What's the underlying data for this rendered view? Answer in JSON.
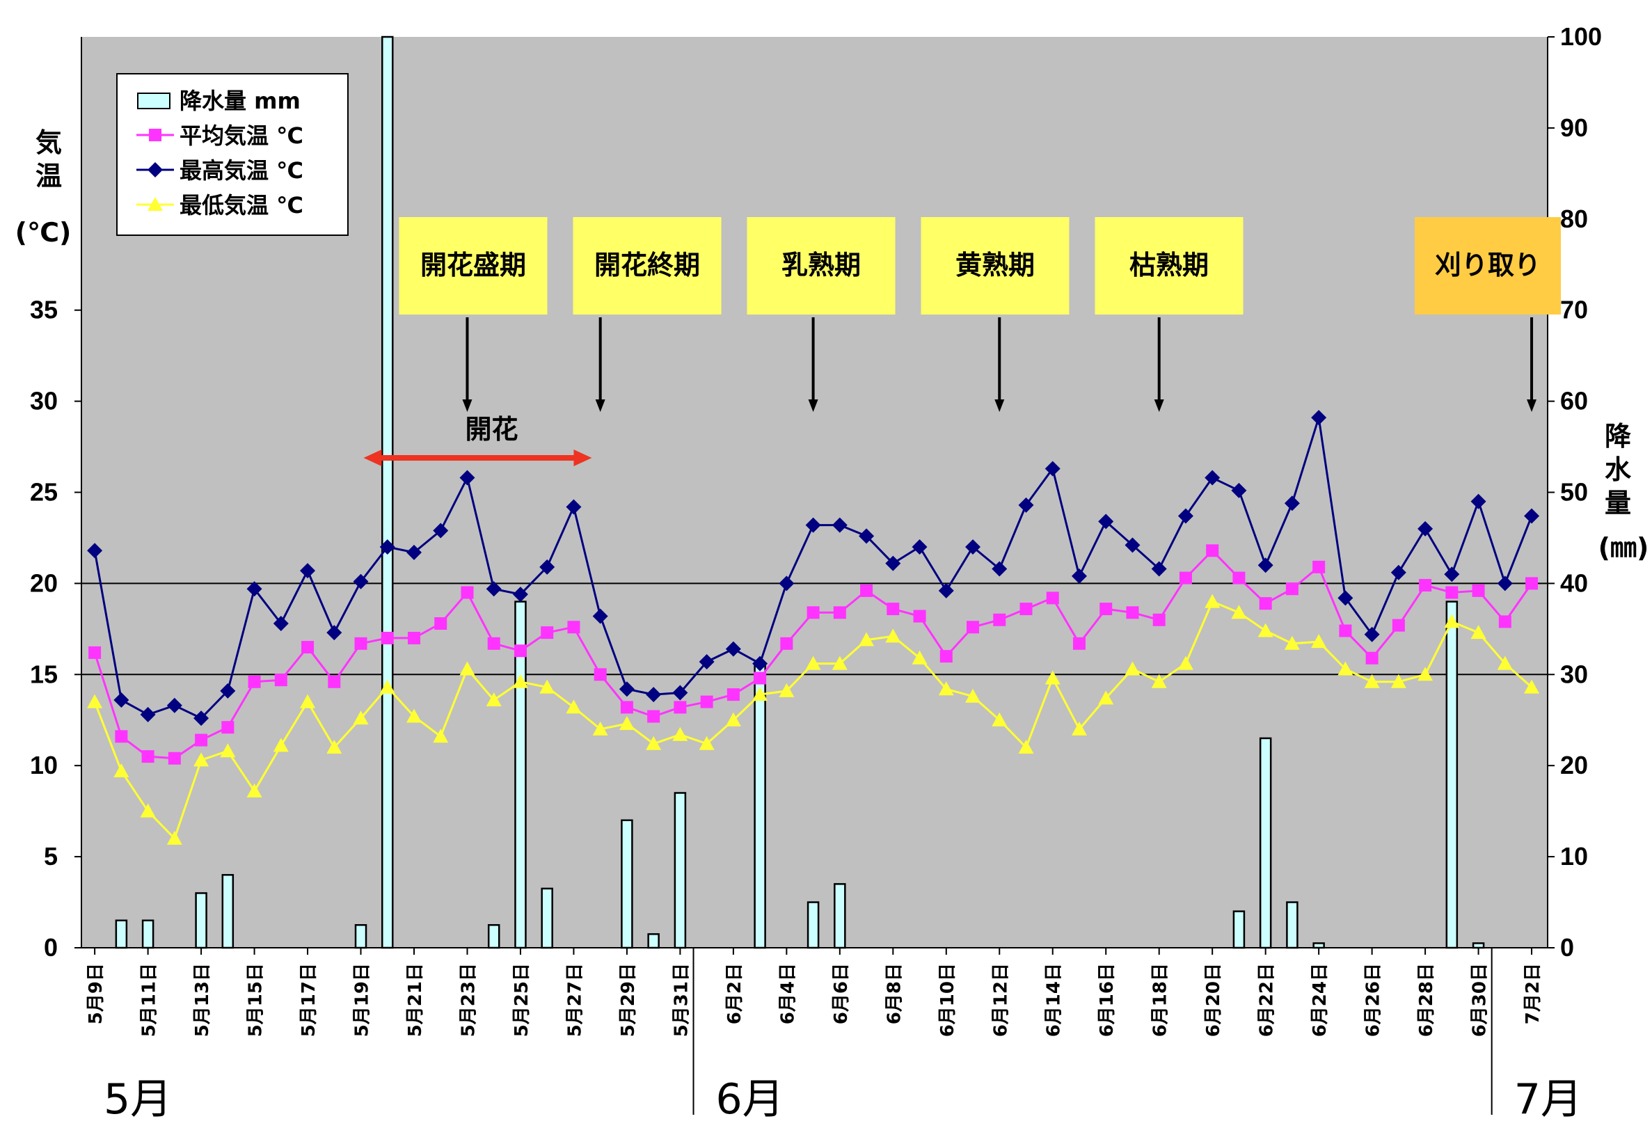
{
  "chart_data": {
    "type": "bar+line",
    "left_axis_label": [
      "気",
      "温"
    ],
    "left_axis_unit": "(℃)",
    "right_axis_label": [
      "降",
      "水",
      "量"
    ],
    "right_axis_unit": "(㎜)",
    "ylim_temp": [
      0,
      50
    ],
    "yticks_temp": [
      0,
      5,
      10,
      15,
      20,
      25,
      30,
      35
    ],
    "ylim_precip": [
      0,
      100
    ],
    "yticks_precip": [
      0,
      10,
      20,
      30,
      40,
      50,
      60,
      70,
      80,
      90,
      100
    ],
    "reference_lines": [
      15,
      20
    ],
    "dates": [
      "5月9日",
      "5月10日",
      "5月11日",
      "5月12日",
      "5月13日",
      "5月14日",
      "5月15日",
      "5月16日",
      "5月17日",
      "5月18日",
      "5月19日",
      "5月20日",
      "5月21日",
      "5月22日",
      "5月23日",
      "5月24日",
      "5月25日",
      "5月26日",
      "5月27日",
      "5月28日",
      "5月29日",
      "5月30日",
      "5月31日",
      "6月1日",
      "6月2日",
      "6月3日",
      "6月4日",
      "6月5日",
      "6月6日",
      "6月7日",
      "6月8日",
      "6月9日",
      "6月10日",
      "6月11日",
      "6月12日",
      "6月13日",
      "6月14日",
      "6月15日",
      "6月16日",
      "6月17日",
      "6月18日",
      "6月19日",
      "6月20日",
      "6月21日",
      "6月22日",
      "6月23日",
      "6月24日",
      "6月25日",
      "6月26日",
      "6月27日",
      "6月28日",
      "6月29日",
      "6月30日",
      "7月1日",
      "7月2日"
    ],
    "x_tick_labels": [
      "5月9日",
      "5月11日",
      "5月13日",
      "5月15日",
      "5月17日",
      "5月19日",
      "5月21日",
      "5月23日",
      "5月25日",
      "5月27日",
      "5月29日",
      "5月31日",
      "6月2日",
      "6月4日",
      "6月6日",
      "6月8日",
      "6月10日",
      "6月12日",
      "6月14日",
      "6月16日",
      "6月18日",
      "6月20日",
      "6月22日",
      "6月24日",
      "6月26日",
      "6月28日",
      "6月30日",
      "7月2日"
    ],
    "series": [
      {
        "name": "降水量 mm",
        "type": "bar",
        "axis": "right",
        "color": "#ccffff",
        "values": [
          0,
          3,
          3,
          0,
          6,
          8,
          0,
          0,
          0,
          0,
          2.5,
          100,
          0,
          0,
          0,
          2.5,
          38,
          6.5,
          0,
          0,
          14,
          1.5,
          17,
          0,
          0,
          31,
          0,
          5,
          7,
          0,
          0,
          0,
          0,
          0,
          0,
          0,
          0,
          0,
          0,
          0,
          0,
          0,
          0,
          4,
          23,
          5,
          0.5,
          0,
          0,
          0,
          0,
          38,
          0.5,
          0,
          0
        ]
      },
      {
        "name": "平均気温 ℃",
        "type": "line",
        "axis": "left",
        "color": "#ff33ff",
        "marker": "square",
        "values": [
          16.2,
          11.6,
          10.5,
          10.4,
          11.4,
          12.1,
          14.6,
          14.7,
          16.5,
          14.6,
          16.7,
          17.0,
          17.0,
          17.8,
          19.5,
          16.7,
          16.3,
          17.3,
          17.6,
          15.0,
          13.2,
          12.7,
          13.2,
          13.5,
          13.9,
          14.8,
          16.7,
          18.4,
          18.4,
          19.6,
          18.6,
          18.2,
          16.0,
          17.6,
          18.0,
          18.6,
          19.2,
          16.7,
          18.6,
          18.4,
          18.0,
          20.3,
          21.8,
          20.3,
          18.9,
          19.7,
          20.9,
          17.4,
          15.9,
          17.7,
          19.9,
          19.5,
          19.6,
          17.9,
          20.0
        ]
      },
      {
        "name": "最高気温 ℃",
        "type": "line",
        "axis": "left",
        "color": "#000080",
        "marker": "diamond",
        "values": [
          21.8,
          13.6,
          12.8,
          13.3,
          12.6,
          14.1,
          19.7,
          17.8,
          20.7,
          17.3,
          20.1,
          22.0,
          21.7,
          22.9,
          25.8,
          19.7,
          19.4,
          20.9,
          24.2,
          18.2,
          14.2,
          13.9,
          14.0,
          15.7,
          16.4,
          15.6,
          20.0,
          23.2,
          23.2,
          22.6,
          21.1,
          22.0,
          19.6,
          22.0,
          20.8,
          24.3,
          26.3,
          20.4,
          23.4,
          22.1,
          20.8,
          23.7,
          25.8,
          25.1,
          21.0,
          24.4,
          29.1,
          19.2,
          17.2,
          20.6,
          23.0,
          20.5,
          24.5,
          20.0,
          23.7
        ]
      },
      {
        "name": "最低気温 ℃",
        "type": "line",
        "axis": "left",
        "color": "#ffff33",
        "marker": "triangle",
        "values": [
          13.5,
          9.7,
          7.5,
          6.0,
          10.3,
          10.8,
          8.6,
          11.1,
          13.5,
          11.0,
          12.6,
          14.3,
          12.7,
          11.6,
          15.3,
          13.6,
          14.6,
          14.3,
          13.2,
          12.0,
          12.3,
          11.2,
          11.7,
          11.2,
          12.5,
          13.9,
          14.1,
          15.6,
          15.6,
          16.9,
          17.1,
          15.9,
          14.2,
          13.8,
          12.5,
          11.0,
          14.8,
          12.0,
          13.7,
          15.3,
          14.6,
          15.6,
          19.0,
          18.4,
          17.4,
          16.7,
          16.8,
          15.3,
          14.6,
          14.6,
          15.0,
          17.9,
          17.3,
          15.6,
          14.3
        ]
      }
    ],
    "legend": [
      "降水量 mm",
      "平均気温 ℃",
      "最高気温 ℃",
      "最低気温 ℃"
    ],
    "legend_position": "top-left",
    "stages": [
      {
        "label": "開花盛期",
        "date": "5月23日",
        "color": "#ffff66"
      },
      {
        "label": "開花終期",
        "date": "5月28日",
        "color": "#ffff66"
      },
      {
        "label": "乳熟期",
        "date": "6月5日",
        "color": "#ffff66"
      },
      {
        "label": "黄熟期",
        "date": "6月12日",
        "color": "#ffff66"
      },
      {
        "label": "枯熟期",
        "date": "6月18日",
        "color": "#ffff66"
      },
      {
        "label": "刈り取り",
        "date": "7月2日",
        "color": "#ffcc44"
      }
    ],
    "flowering": {
      "label": "開花",
      "from": "5月19日",
      "to": "5月27日",
      "color": "#ee3322"
    },
    "months": [
      {
        "label": "5月",
        "from": "5月9日"
      },
      {
        "label": "6月",
        "from": "6月1日"
      },
      {
        "label": "7月",
        "from": "7月1日"
      }
    ],
    "plot_background": "#c0c0c0"
  }
}
